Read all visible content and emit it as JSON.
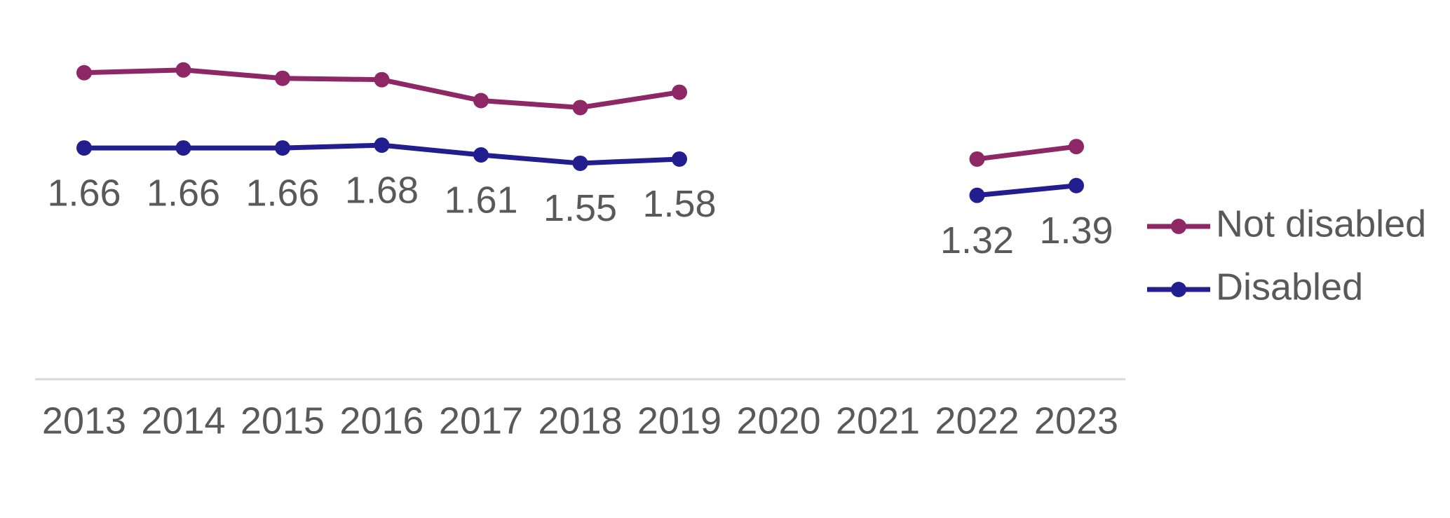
{
  "chart_data": {
    "type": "line",
    "x": [
      "2013",
      "2014",
      "2015",
      "2016",
      "2017",
      "2018",
      "2019",
      "2020",
      "2021",
      "2022",
      "2023"
    ],
    "series": [
      {
        "name": "Not disabled",
        "color": "#8e2766",
        "values": [
          2.2,
          2.22,
          2.16,
          2.15,
          2.0,
          1.95,
          2.06,
          null,
          null,
          1.58,
          1.67
        ]
      },
      {
        "name": "Disabled",
        "color": "#221e8f",
        "values": [
          1.66,
          1.66,
          1.66,
          1.68,
          1.61,
          1.55,
          1.58,
          null,
          null,
          1.32,
          1.39
        ],
        "data_labels": true
      }
    ],
    "ylim": [
      0,
      2.4
    ],
    "legend": "right"
  }
}
